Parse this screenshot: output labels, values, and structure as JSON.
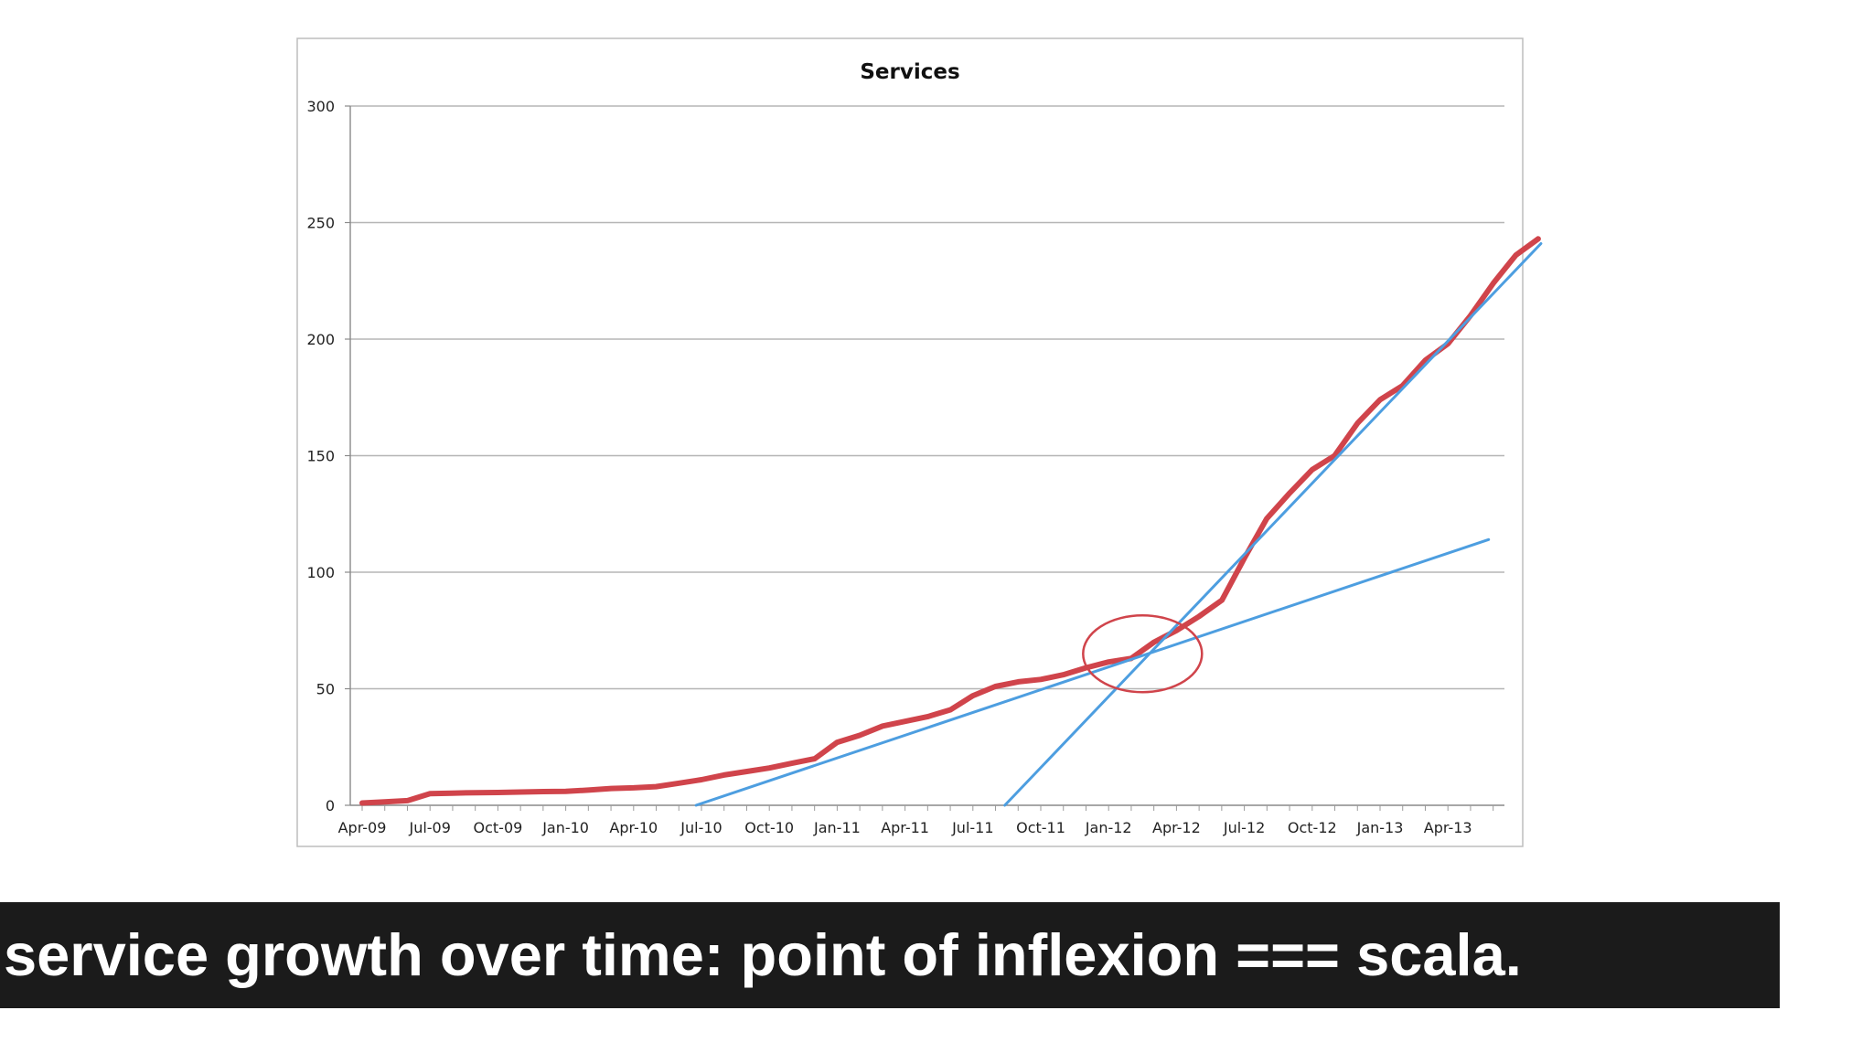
{
  "chart_data": {
    "type": "line",
    "title": "Services",
    "xlabel": "",
    "ylabel": "",
    "ylim": [
      0,
      300
    ],
    "yticks": [
      0,
      50,
      100,
      150,
      200,
      250,
      300
    ],
    "categories": [
      "Apr-09",
      "Jul-09",
      "Oct-09",
      "Jan-10",
      "Apr-10",
      "Jul-10",
      "Oct-10",
      "Jan-11",
      "Apr-11",
      "Jul-11",
      "Oct-11",
      "Jan-12",
      "Apr-12",
      "Jul-12",
      "Oct-12",
      "Jan-13",
      "Apr-13"
    ],
    "grid": true,
    "legend": "none",
    "series": [
      {
        "color": "#d0444b",
        "style": "solid",
        "points": [
          [
            0,
            1
          ],
          [
            0.33,
            1.5
          ],
          [
            0.67,
            2
          ],
          [
            1,
            5
          ],
          [
            1.33,
            5.2
          ],
          [
            1.67,
            5.4
          ],
          [
            2,
            5.5
          ],
          [
            2.33,
            5.7
          ],
          [
            2.67,
            5.9
          ],
          [
            3,
            6
          ],
          [
            3.33,
            6.5
          ],
          [
            3.67,
            7.2
          ],
          [
            4,
            7.5
          ],
          [
            4.33,
            8
          ],
          [
            4.67,
            9.5
          ],
          [
            5,
            11
          ],
          [
            5.33,
            13
          ],
          [
            5.67,
            14.5
          ],
          [
            6,
            16
          ],
          [
            6.33,
            18
          ],
          [
            6.67,
            20
          ],
          [
            7,
            27
          ],
          [
            7.33,
            30
          ],
          [
            7.67,
            34
          ],
          [
            8,
            36
          ],
          [
            8.33,
            38
          ],
          [
            8.67,
            41
          ],
          [
            9,
            47
          ],
          [
            9.33,
            51
          ],
          [
            9.67,
            53
          ],
          [
            10,
            54
          ],
          [
            10.33,
            56
          ],
          [
            10.67,
            59
          ],
          [
            11,
            61.5
          ],
          [
            11.33,
            63
          ],
          [
            11.67,
            70
          ],
          [
            12,
            75
          ],
          [
            12.33,
            81
          ],
          [
            12.67,
            88
          ],
          [
            13,
            106
          ],
          [
            13.33,
            123
          ],
          [
            13.67,
            134
          ],
          [
            14,
            144
          ],
          [
            14.33,
            150
          ],
          [
            14.67,
            164
          ],
          [
            15,
            174
          ],
          [
            15.33,
            180
          ],
          [
            15.67,
            191
          ],
          [
            16,
            198
          ],
          [
            16.33,
            210
          ],
          [
            16.67,
            224
          ],
          [
            17,
            236
          ],
          [
            17.33,
            243
          ]
        ]
      },
      {
        "color": "#4d9ee0",
        "style": "trend",
        "points": [
          [
            4.92,
            0
          ],
          [
            16.6,
            114
          ]
        ]
      },
      {
        "color": "#4d9ee0",
        "style": "trend",
        "points": [
          [
            9.47,
            0
          ],
          [
            17.37,
            241
          ]
        ]
      }
    ],
    "annotations": [
      {
        "type": "ellipse",
        "color": "#d0444b",
        "center": [
          11.5,
          65
        ],
        "note": "circled point of inflexion"
      }
    ]
  },
  "caption": {
    "text": "service growth over time: point of inflexion === scala."
  }
}
